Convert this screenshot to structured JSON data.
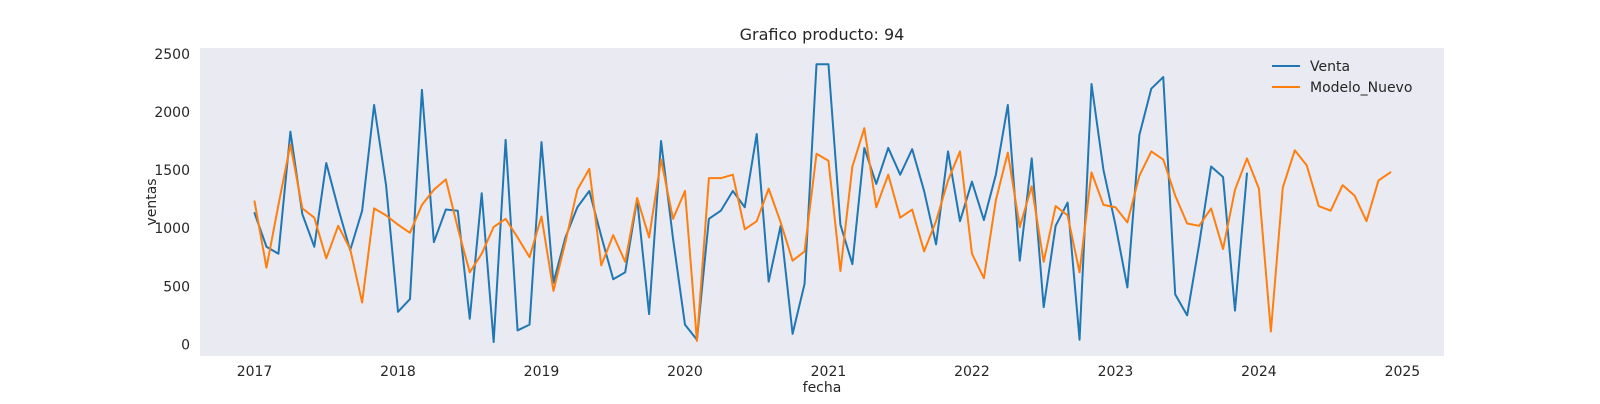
{
  "chart_data": {
    "type": "line",
    "title": "Grafico producto: 94",
    "xlabel": "fecha",
    "ylabel": "ventas",
    "xlim": [
      2016.62,
      2025.29
    ],
    "ylim": [
      -100,
      2550
    ],
    "x_ticks": [
      2017,
      2018,
      2019,
      2020,
      2021,
      2022,
      2023,
      2024,
      2025
    ],
    "x_tick_labels": [
      "2017",
      "2018",
      "2019",
      "2020",
      "2021",
      "2022",
      "2023",
      "2024",
      "2025"
    ],
    "y_ticks": [
      0,
      500,
      1000,
      1500,
      2000,
      2500
    ],
    "y_tick_labels": [
      "0",
      "500",
      "1000",
      "1500",
      "2000",
      "2500"
    ],
    "grid": false,
    "legend_position": "top-right",
    "x_start_year": 2017,
    "series": [
      {
        "name": "Venta",
        "color": "#1f77b4",
        "values": [
          1130,
          840,
          780,
          1830,
          1120,
          840,
          1560,
          1170,
          810,
          1150,
          2060,
          1370,
          280,
          390,
          2190,
          880,
          1160,
          1150,
          220,
          1300,
          20,
          1760,
          120,
          170,
          1740,
          530,
          920,
          1180,
          1320,
          930,
          560,
          620,
          1250,
          260,
          1750,
          910,
          170,
          40,
          1080,
          1150,
          1320,
          1180,
          1810,
          540,
          1020,
          90,
          520,
          2410,
          2410,
          1030,
          690,
          1690,
          1380,
          1690,
          1460,
          1680,
          1320,
          860,
          1660,
          1060,
          1400,
          1070,
          1460,
          2060,
          720,
          1600,
          320,
          1020,
          1220,
          40,
          2240,
          1500,
          1030,
          490,
          1800,
          2200,
          2300,
          430,
          250,
          860,
          1530,
          1440,
          290,
          1470
        ]
      },
      {
        "name": "Modelo_Nuevo",
        "color": "#ff7f0e",
        "values": [
          1230,
          660,
          1200,
          1720,
          1170,
          1090,
          740,
          1020,
          820,
          360,
          1170,
          1110,
          1030,
          960,
          1200,
          1330,
          1420,
          1000,
          620,
          780,
          1010,
          1080,
          920,
          750,
          1100,
          460,
          880,
          1330,
          1510,
          680,
          940,
          710,
          1260,
          920,
          1590,
          1080,
          1320,
          30,
          1430,
          1430,
          1460,
          990,
          1060,
          1340,
          1050,
          720,
          800,
          1640,
          1580,
          630,
          1530,
          1860,
          1180,
          1460,
          1090,
          1160,
          800,
          1060,
          1410,
          1660,
          780,
          570,
          1240,
          1650,
          1010,
          1360,
          710,
          1190,
          1110,
          620,
          1480,
          1200,
          1180,
          1050,
          1450,
          1660,
          1590,
          1280,
          1040,
          1020,
          1170,
          820,
          1330,
          1600,
          1340,
          110,
          1350,
          1670,
          1540,
          1190,
          1150,
          1370,
          1280,
          1060,
          1410,
          1480
        ]
      }
    ]
  }
}
